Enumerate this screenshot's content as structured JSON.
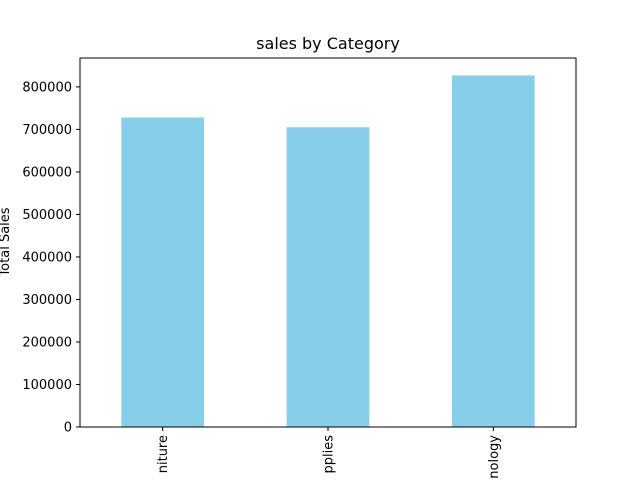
{
  "chart_data": {
    "type": "bar",
    "title": "sales by Category",
    "xlabel": "",
    "ylabel": "Total Sales",
    "categories": [
      "Furniture",
      "Office Supplies",
      "Technology"
    ],
    "visible_tick_text": [
      "niture",
      "pplies",
      "nology"
    ],
    "values": [
      728000,
      705000,
      827000
    ],
    "yticks": [
      0,
      100000,
      200000,
      300000,
      400000,
      500000,
      600000,
      700000,
      800000
    ],
    "ylim": [
      0,
      868000
    ],
    "grid": false,
    "legend": "none",
    "bar_color": "#87ceeb"
  }
}
